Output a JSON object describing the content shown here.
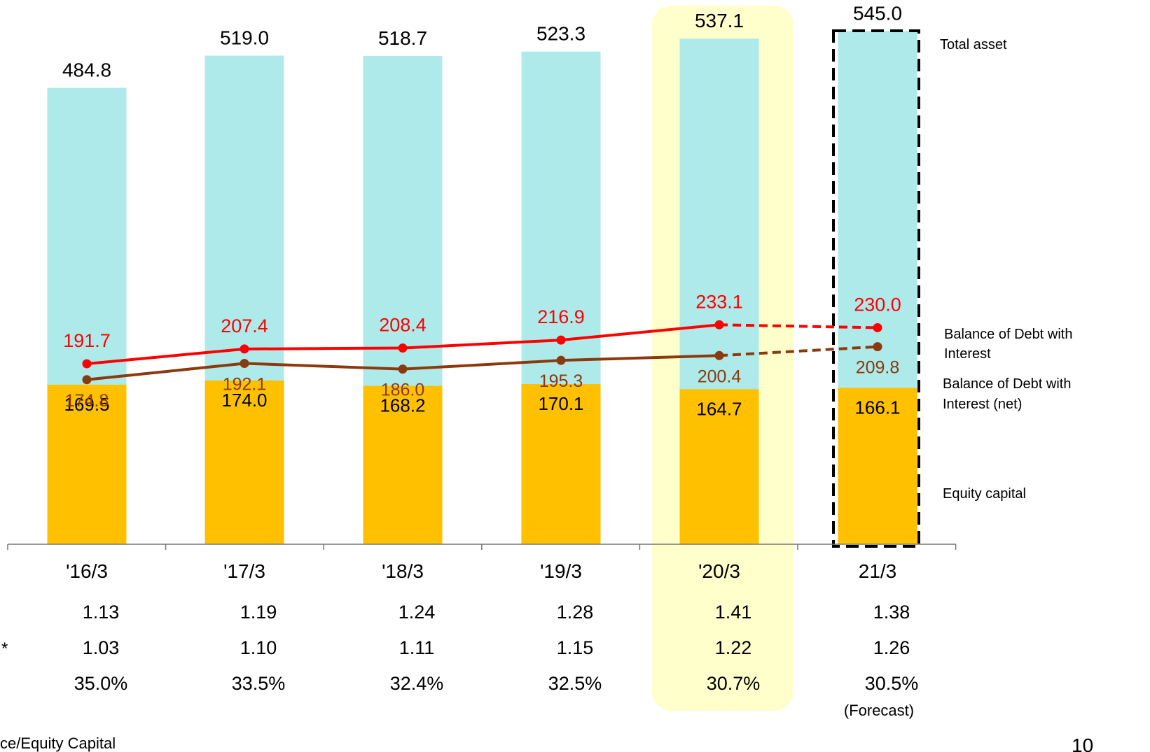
{
  "chart_data": {
    "type": "bar",
    "categories": [
      "'16/3",
      "'17/3",
      "'18/3",
      "'19/3",
      "'20/3",
      "21/3"
    ],
    "series": [
      {
        "name": "Total asset",
        "values": [
          484.8,
          519.0,
          518.7,
          523.3,
          537.1,
          545.0
        ],
        "color": "#aeeaea"
      },
      {
        "name": "Equity capital",
        "values": [
          169.5,
          174.0,
          168.2,
          170.1,
          164.7,
          166.1
        ],
        "color": "#ffc000"
      },
      {
        "name": "Balance of Debt with Interest",
        "values": [
          191.7,
          207.4,
          208.4,
          216.9,
          233.1,
          230.0
        ],
        "color": "#ff0000"
      },
      {
        "name": "Balance of Debt with Interest (net)",
        "values": [
          174.8,
          192.1,
          186.0,
          195.3,
          200.4,
          209.8
        ],
        "color": "#8b3a0f"
      }
    ],
    "bar_labels": {
      "total": [
        "484.8",
        "519.0",
        "518.7",
        "523.3",
        "537.1",
        "545.0"
      ],
      "equity": [
        "169.5",
        "174.0",
        "168.2",
        "170.1",
        "164.7",
        "166.1"
      ],
      "debt": [
        "191.7",
        "207.4",
        "208.4",
        "216.9",
        "233.1",
        "230.0"
      ],
      "debt_net": [
        "174.8",
        "192.1",
        "186.0",
        "195.3",
        "200.4",
        "209.8"
      ]
    },
    "legend": {
      "total": "Total asset",
      "debt_line1": "Balance of Debt with",
      "debt_line2": "Interest",
      "net_line1": "Balance of Debt with",
      "net_line2": "Interest (net)",
      "equity": "Equity capital"
    },
    "rows": [
      {
        "marker": "",
        "values": [
          "1.13",
          "1.19",
          "1.24",
          "1.28",
          "1.41",
          "1.38"
        ]
      },
      {
        "marker": "*",
        "values": [
          "1.03",
          "1.10",
          "1.11",
          "1.15",
          "1.22",
          "1.26"
        ]
      },
      {
        "marker": "",
        "values": [
          "35.0%",
          "33.5%",
          "32.4%",
          "32.5%",
          "30.7%",
          "30.5%"
        ]
      }
    ],
    "forecast_label": "(Forecast)",
    "highlight_category": "'20/3",
    "forecast_category": "21/3",
    "footnote": "ce/Equity Capital",
    "page_number": "10"
  }
}
